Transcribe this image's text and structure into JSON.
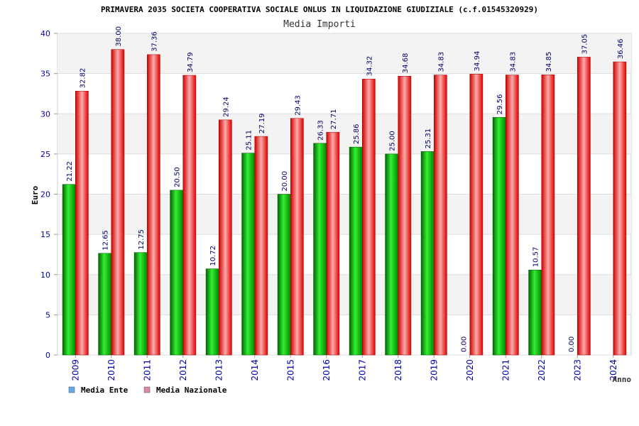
{
  "chart_data": {
    "type": "bar",
    "title": "PRIMAVERA 2035 SOCIETA COOPERATIVA SOCIALE ONLUS IN LIQUIDAZIONE GIUDIZIALE (c.f.01545320929)",
    "subtitle": "Media Importi",
    "ylabel": "Euro",
    "xlabel": "Anno",
    "ylim": [
      0,
      40
    ],
    "yticks": [
      "0",
      "5",
      "10",
      "15",
      "20",
      "25",
      "30",
      "35",
      "40"
    ],
    "grid": true,
    "legend_position": "bottom-left",
    "categories": [
      "2009",
      "2010",
      "2011",
      "2012",
      "2013",
      "2014",
      "2015",
      "2016",
      "2017",
      "2018",
      "2019",
      "2020",
      "2021",
      "2022",
      "2023",
      "2024"
    ],
    "series": [
      {
        "name": "Media Ente",
        "color": "#00bb00",
        "legend_color": "#66aaee",
        "values": [
          21.22,
          12.65,
          12.75,
          20.5,
          10.72,
          25.11,
          20.0,
          26.33,
          25.86,
          25.0,
          25.31,
          0.0,
          29.56,
          10.57,
          0.0,
          null
        ],
        "labels": [
          "21.22",
          "12.65",
          "12.75",
          "20.50",
          "10.72",
          "25.11",
          "20.00",
          "26.33",
          "25.86",
          "25.00",
          "25.31",
          "0.00",
          "29.56",
          "10.57",
          "0.00",
          ""
        ]
      },
      {
        "name": "Media Nazionale",
        "color": "#ee0000",
        "legend_color": "#dd88aa",
        "values": [
          32.82,
          38.0,
          37.36,
          34.79,
          29.24,
          27.19,
          29.43,
          27.71,
          34.32,
          34.68,
          34.83,
          34.94,
          34.83,
          34.85,
          37.05,
          36.46
        ],
        "labels": [
          "32.82",
          "38.00",
          "37.36",
          "34.79",
          "29.24",
          "27.19",
          "29.43",
          "27.71",
          "34.32",
          "34.68",
          "34.83",
          "34.94",
          "34.83",
          "34.85",
          "37.05",
          "36.46"
        ]
      }
    ]
  }
}
